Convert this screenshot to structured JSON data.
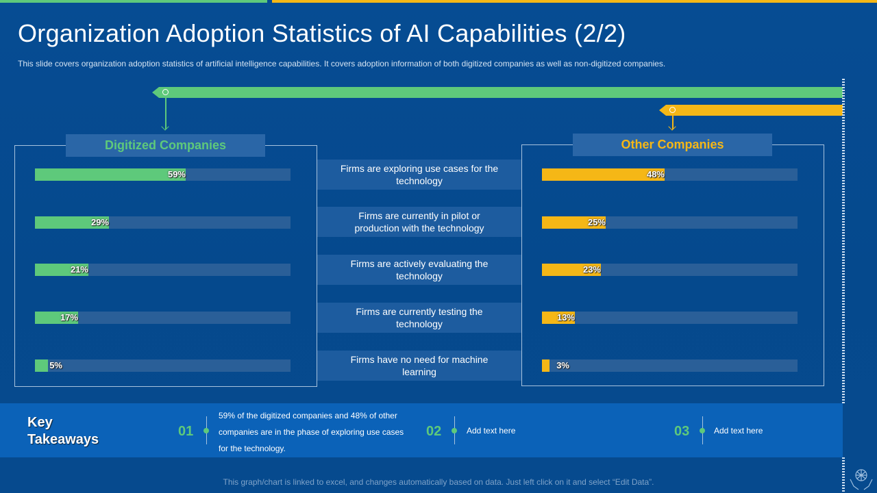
{
  "slide": {
    "title": "Organization Adoption Statistics of AI Capabilities (2/2)",
    "subtitle": "This slide covers organization adoption statistics of artificial intelligence capabilities. It covers adoption information of both digitized companies as well as non-digitized companies."
  },
  "colors": {
    "background": "#05498d",
    "digitized": "#5ec97b",
    "other": "#f5b716",
    "track": "#2a5f98"
  },
  "chart_data": {
    "type": "bar",
    "orientation": "horizontal",
    "categories": [
      "Firms are exploring use cases for the technology",
      "Firms are currently in pilot or production with the technology",
      "Firms are actively evaluating the technology",
      "Firms are currently testing the technology",
      "Firms have no need for machine learning"
    ],
    "xlim": [
      0,
      100
    ],
    "series": [
      {
        "name": "Digitized Companies",
        "values": [
          59,
          29,
          21,
          17,
          5
        ],
        "labels": [
          "59%",
          "29%",
          "21%",
          "17%",
          "5%"
        ]
      },
      {
        "name": "Other Companies",
        "values": [
          48,
          25,
          23,
          13,
          3
        ],
        "labels": [
          "48%",
          "25%",
          "23%",
          "13%",
          "3%"
        ]
      }
    ]
  },
  "takeaways": {
    "title_line1": "Key",
    "title_line2": "Takeaways",
    "items": [
      {
        "number": "01",
        "text": "59% of the digitized companies and 48% of other companies are in the phase of exploring use cases for the technology."
      },
      {
        "number": "02",
        "text": "Add text here"
      },
      {
        "number": "03",
        "text": "Add text here"
      }
    ]
  },
  "footer": {
    "note": "This graph/chart is linked to excel, and changes automatically based on data. Just left click on it and select “Edit Data”."
  }
}
